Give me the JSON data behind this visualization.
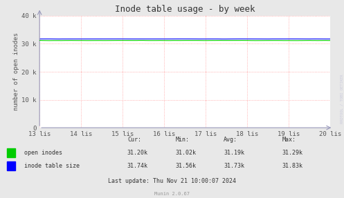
{
  "title": "Inode table usage - by week",
  "ylabel": "number of open inodes",
  "bg_color": "#e8e8e8",
  "plot_bg_color": "#ffffff",
  "grid_color": "#ff9999",
  "ylim": [
    0,
    40000
  ],
  "yticks": [
    0,
    10000,
    20000,
    30000,
    40000
  ],
  "ytick_labels": [
    "0",
    "10 k",
    "20 k",
    "30 k",
    "40 k"
  ],
  "x_labels": [
    "13 lis",
    "14 lis",
    "15 lis",
    "16 lis",
    "17 lis",
    "18 lis",
    "19 lis",
    "20 lis"
  ],
  "x_positions": [
    0,
    1,
    2,
    3,
    4,
    5,
    6,
    7
  ],
  "open_inodes_color": "#00cc00",
  "inode_table_color": "#0000ff",
  "open_inodes_value": 31190,
  "open_inodes_min": 31020,
  "open_inodes_max": 31290,
  "open_inodes_cur": 31200,
  "open_inodes_avg": 31190,
  "inode_table_value": 31730,
  "inode_table_min": 31560,
  "inode_table_max": 31830,
  "inode_table_cur": 31740,
  "inode_table_avg": 31730,
  "watermark": "RRDTOOL / TOBI OETIKER",
  "footer": "Munin 2.0.67",
  "last_update": "Last update: Thu Nov 21 10:00:07 2024",
  "legend1_name": "open inodes",
  "legend2_name": "inode table size",
  "cur_label": "Cur:",
  "min_label": "Min:",
  "avg_label": "Avg:",
  "max_label": "Max:",
  "arrow_color": "#9999bb"
}
